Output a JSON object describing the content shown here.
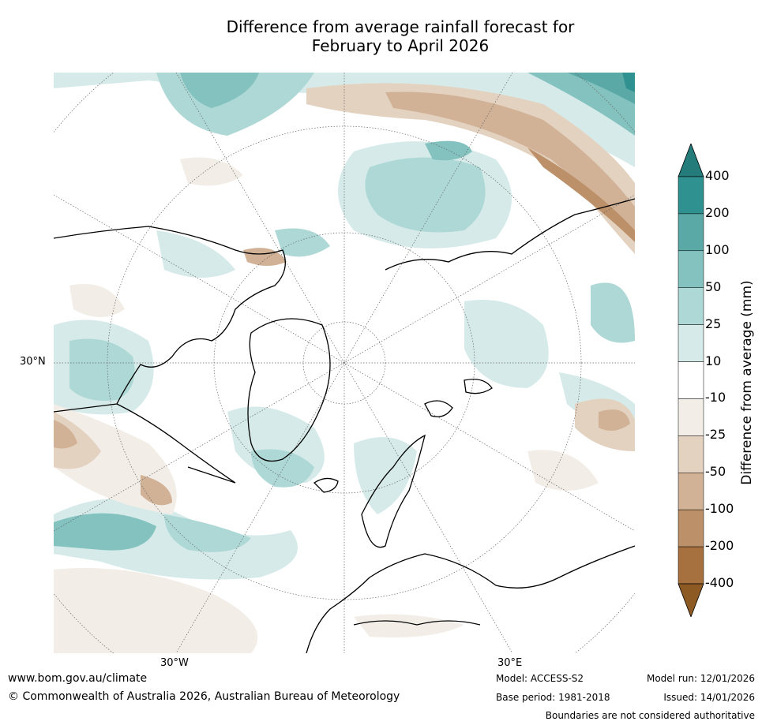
{
  "title": {
    "line1": "Difference from average rainfall forecast for",
    "line2": "February to April 2026"
  },
  "map": {
    "projection": "north polar stereographic",
    "lat_label": "30°N",
    "lon_labels": [
      "30°W",
      "30°E"
    ]
  },
  "colorbar": {
    "title": "Difference from average (mm)",
    "tick_labels": [
      "400",
      "200",
      "100",
      "50",
      "25",
      "10",
      "-10",
      "-25",
      "-50",
      "-100",
      "-200",
      "-400"
    ],
    "bin_colors_top_to_bottom": [
      "#2f9290",
      "#5aa9a7",
      "#83c2bf",
      "#aed8d6",
      "#d6ebe9",
      "#ffffff",
      "#f2ede7",
      "#e4d2c1",
      "#d1b297",
      "#bc9169",
      "#a6703f"
    ],
    "extend_top_color": "#237b7a",
    "extend_bottom_color": "#8d5a24"
  },
  "footer": {
    "website": "www.bom.gov.au/climate",
    "copyright": "© Commonwealth of Australia 2026, Australian Bureau of Meteorology",
    "model": "Model: ACCESS-S2",
    "base_period": "Base period: 1981-2018",
    "model_run": "Model run: 12/01/2026",
    "issued": "Issued: 14/01/2026",
    "disclaimer": "Boundaries are not considered authoritative"
  }
}
